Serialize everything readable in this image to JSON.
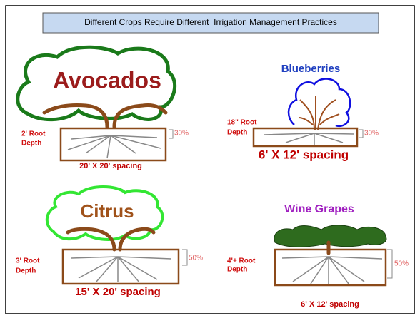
{
  "title": "Different Crops Require Different  Irrigation Management Practices",
  "crops": [
    {
      "name": "Avocados",
      "root_depth": [
        "2' Root",
        "Depth"
      ],
      "percent": "30%",
      "spacing": "20' X 20' spacing"
    },
    {
      "name": "Blueberries",
      "root_depth": [
        "18\" Root",
        "Depth"
      ],
      "percent": "30%",
      "spacing": "6' X 12' spacing"
    },
    {
      "name": "Citrus",
      "root_depth": [
        "3' Root",
        "Depth"
      ],
      "percent": "50%",
      "spacing": "15' X 20' spacing"
    },
    {
      "name": "Wine Grapes",
      "root_depth": [
        "4'+ Root",
        "Depth"
      ],
      "percent": "50%",
      "spacing": "6' X 12' spacing"
    }
  ]
}
